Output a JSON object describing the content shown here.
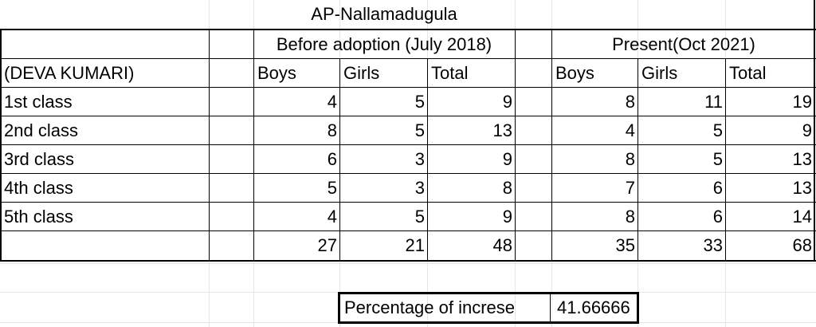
{
  "title": "AP-Nallamadugula",
  "group_before": "Before adoption (July 2018)",
  "group_present": "Present(Oct 2021)",
  "row_header": "(DEVA KUMARI)",
  "col_headers": [
    "Boys",
    "Girls",
    "Total",
    "Boys",
    "Girls",
    "Total"
  ],
  "rows": [
    {
      "label": "1st class",
      "values": [
        "4",
        "5",
        "9",
        "8",
        "11",
        "19"
      ]
    },
    {
      "label": "2nd class",
      "values": [
        "8",
        "5",
        "13",
        "4",
        "5",
        "9"
      ]
    },
    {
      "label": "3rd class",
      "values": [
        "6",
        "3",
        "9",
        "8",
        "5",
        "13"
      ]
    },
    {
      "label": "4th class",
      "values": [
        "5",
        "3",
        "8",
        "7",
        "6",
        "13"
      ]
    },
    {
      "label": "5th class",
      "values": [
        "4",
        "5",
        "9",
        "8",
        "6",
        "14"
      ]
    }
  ],
  "totals": [
    "27",
    "21",
    "48",
    "35",
    "33",
    "68"
  ],
  "percentage_label": "Percentage of increse",
  "percentage_value": "41.66666"
}
